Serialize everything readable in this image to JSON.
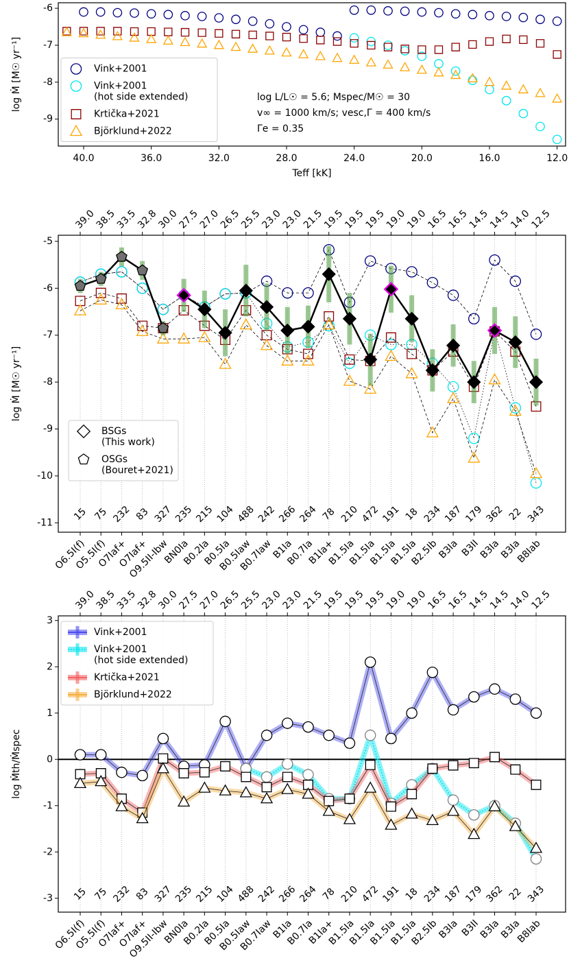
{
  "chart_data": [
    {
      "type": "scatter",
      "xlabel": "Teff [kK]",
      "ylabel": "log Ṁ [M☉ yr⁻¹]",
      "xlim": [
        41.5,
        11.5
      ],
      "xticks": [
        {
          "value": 40,
          "label": "40.0"
        },
        {
          "value": 36,
          "label": "36.0"
        },
        {
          "value": 32,
          "label": "32.0"
        },
        {
          "value": 28,
          "label": "28.0"
        },
        {
          "value": 24,
          "label": "24.0"
        },
        {
          "value": 20,
          "label": "20.0"
        },
        {
          "value": 16,
          "label": "16.0"
        },
        {
          "value": 12,
          "label": "12.0"
        }
      ],
      "ylim": [
        -9.73,
        -5.85
      ],
      "yticks": [
        -6,
        -7,
        -8,
        -9
      ],
      "legend": "center left",
      "annotations": [
        "log L/L☉ = 5.6; Mspec/M☉ = 30",
        "v∞ = 1000 km/s; vesc,Γ = 400 km/s",
        "Γe = 0.35"
      ],
      "series": [
        {
          "name": [
            "Vink+2001"
          ],
          "color": "#000080",
          "marker": "circle",
          "x": [
            40,
            39,
            38,
            37,
            36,
            35,
            34,
            33,
            32,
            31,
            30,
            29,
            28,
            27,
            26,
            25,
            24,
            23,
            22,
            21,
            20,
            19,
            18,
            17,
            16,
            15,
            14,
            13,
            12
          ],
          "values": [
            -6.1,
            -6.1,
            -6.12,
            -6.13,
            -6.15,
            -6.17,
            -6.2,
            -6.22,
            -6.26,
            -6.3,
            -6.35,
            -6.42,
            -6.5,
            -6.58,
            -6.65,
            -6.75,
            -6.05,
            -6.05,
            -6.07,
            -6.08,
            -6.1,
            -6.12,
            -6.15,
            -6.17,
            -6.2,
            -6.22,
            -6.25,
            -6.3,
            -6.35
          ]
        },
        {
          "name": [
            "Vink+2001",
            "(hot side extended)"
          ],
          "color": "#00e5ee",
          "marker": "circle",
          "x": [
            24,
            23,
            22,
            21,
            20,
            19,
            18,
            17,
            16,
            15,
            14,
            13,
            12
          ],
          "values": [
            -6.8,
            -6.9,
            -7.0,
            -7.15,
            -7.3,
            -7.5,
            -7.7,
            -7.95,
            -8.2,
            -8.5,
            -8.85,
            -9.2,
            -9.55
          ]
        },
        {
          "name": [
            "Krtička+2021"
          ],
          "color": "#8b0000",
          "marker": "square",
          "x": [
            41,
            40,
            39,
            38,
            37,
            36,
            35,
            34,
            33,
            32,
            31,
            30,
            29,
            28,
            27,
            26,
            25,
            24,
            23,
            22,
            21,
            20,
            19,
            18,
            17,
            16,
            15,
            14,
            13,
            12
          ],
          "values": [
            -6.62,
            -6.62,
            -6.62,
            -6.62,
            -6.63,
            -6.63,
            -6.64,
            -6.65,
            -6.66,
            -6.68,
            -6.7,
            -6.72,
            -6.75,
            -6.78,
            -6.82,
            -6.86,
            -6.9,
            -6.95,
            -7.0,
            -7.05,
            -7.1,
            -7.12,
            -7.12,
            -7.05,
            -6.98,
            -6.9,
            -6.83,
            -6.85,
            -6.95,
            -7.25
          ]
        },
        {
          "name": [
            "Björklund+2022"
          ],
          "color": "#ffa500",
          "marker": "triangle",
          "x": [
            41,
            40,
            39,
            38,
            37,
            36,
            35,
            34,
            33,
            32,
            31,
            30,
            29,
            28,
            27,
            26,
            25,
            24,
            23,
            22,
            21,
            20,
            19,
            18,
            17,
            16,
            15,
            14,
            13,
            12
          ],
          "values": [
            -6.65,
            -6.68,
            -6.72,
            -6.76,
            -6.8,
            -6.84,
            -6.88,
            -6.92,
            -6.96,
            -7.0,
            -7.05,
            -7.1,
            -7.15,
            -7.2,
            -7.25,
            -7.3,
            -7.35,
            -7.4,
            -7.47,
            -7.53,
            -7.6,
            -7.67,
            -7.74,
            -7.81,
            -7.9,
            -8.0,
            -8.1,
            -8.2,
            -8.3,
            -8.45
          ]
        }
      ]
    },
    {
      "type": "scatter",
      "ylabel": "log Ṁ [M☉ yr⁻¹]",
      "categories": [
        "O6.5I(f)",
        "O5.5I(f)",
        "O7Iaf+",
        "O7Iaf+",
        "O9.5II-Ibw",
        "BN0Ia",
        "B0.2Ia",
        "B0.5Ia",
        "B0.5Iaw",
        "B0.7Iaw",
        "B1Ia",
        "B0.7Ia",
        "B1Ia+",
        "B1.5Ia",
        "B1.5Ia",
        "B1.5Ia",
        "B1.5Ia",
        "B2.5Ib",
        "B3Ia",
        "B3II",
        "B3Ia",
        "B3Ia",
        "B8Iab"
      ],
      "top_labels": [
        "39.0",
        "38.5",
        "33.5",
        "32.8",
        "30.0",
        "27.5",
        "27.0",
        "26.5",
        "25.5",
        "23.0",
        "23.0",
        "21.5",
        "19.5",
        "19.5",
        "19.5",
        "19.0",
        "19.0",
        "16.5",
        "16.5",
        "14.5",
        "14.5",
        "14.0",
        "12.5"
      ],
      "numbers": [
        "15",
        "75",
        "232",
        "83",
        "327",
        "235",
        "215",
        "104",
        "488",
        "242",
        "266",
        "264",
        "78",
        "210",
        "472",
        "191",
        "18",
        "234",
        "187",
        "179",
        "362",
        "22",
        "343"
      ],
      "ylim": [
        -11.2,
        -4.87
      ],
      "yticks": [
        -5,
        -6,
        -7,
        -8,
        -9,
        -10,
        -11
      ],
      "legend": "lower left",
      "series": [
        {
          "color": "#000080",
          "marker": "circle",
          "linestyle": "dashed",
          "values": [
            -5.87,
            -5.7,
            -5.65,
            -6.0,
            -6.45,
            -6.15,
            -6.4,
            -6.12,
            -6.1,
            -5.85,
            -6.1,
            -6.1,
            -5.18,
            -6.3,
            -5.42,
            -5.58,
            -5.65,
            -5.88,
            -6.15,
            -6.65,
            -5.4,
            -5.85,
            -6.98
          ]
        },
        {
          "color": "#00e5ee",
          "marker": "circle",
          "linestyle": "dotted",
          "values": [
            -5.87,
            -5.7,
            -5.65,
            -6.0,
            -6.45,
            -6.15,
            -6.4,
            -6.12,
            -6.1,
            -6.75,
            -7.25,
            -7.15,
            -6.8,
            -7.6,
            -7.0,
            -7.2,
            -7.2,
            -7.6,
            -8.1,
            -9.2,
            -6.9,
            -8.55,
            -10.15
          ]
        },
        {
          "color": "#8b0000",
          "marker": "square",
          "linestyle": "dashed",
          "values": [
            -6.27,
            -6.1,
            -6.22,
            -6.8,
            -6.85,
            -6.47,
            -6.8,
            -7.1,
            -6.47,
            -7.0,
            -7.3,
            -7.4,
            -6.6,
            -7.52,
            -7.55,
            -7.05,
            -7.4,
            -7.75,
            -7.35,
            -8.1,
            -6.92,
            -7.35,
            -8.52
          ]
        },
        {
          "color": "#ffa500",
          "marker": "triangle",
          "linestyle": "dashed",
          "values": [
            -6.48,
            -6.25,
            -6.35,
            -6.92,
            -7.08,
            -7.08,
            -7.05,
            -7.62,
            -6.78,
            -7.22,
            -7.55,
            -7.55,
            -6.78,
            -7.98,
            -8.15,
            -7.45,
            -7.82,
            -9.08,
            -8.35,
            -9.62,
            -7.95,
            -8.62,
            -9.95
          ]
        },
        {
          "name": [
            "BSGs",
            "(This work)"
          ],
          "color": "#000000",
          "marker": "diamond",
          "marker_fill": "#000000",
          "linestyle": "solid",
          "error_color": "#4a9a3a",
          "values": [
            null,
            null,
            null,
            null,
            null,
            -6.15,
            -6.45,
            -6.95,
            -6.05,
            -6.4,
            -6.9,
            -6.82,
            -5.7,
            -6.65,
            -7.52,
            -6.02,
            -6.65,
            -7.75,
            -7.22,
            -8.0,
            -6.9,
            -7.15,
            -8.0
          ],
          "errors": [
            null,
            null,
            null,
            null,
            null,
            0.35,
            0.4,
            0.5,
            0.55,
            0.5,
            0.5,
            0.45,
            0.6,
            0.55,
            0.55,
            0.5,
            0.5,
            0.45,
            0.45,
            0.45,
            0.5,
            0.55,
            0.5
          ],
          "marker_edges": [
            null,
            null,
            null,
            null,
            null,
            "#e600e6",
            "#000000",
            "#000000",
            "#000000",
            "#000000",
            "#000000",
            "#000000",
            "#000000",
            "#000000",
            "#000000",
            "#e600e6",
            "#000000",
            "#000000",
            "#000000",
            "#000000",
            "#e600e6",
            "#000000",
            "#000000"
          ]
        },
        {
          "name": [
            "OSGs",
            "(Bouret+2021)"
          ],
          "color": "#000000",
          "marker": "pentagon",
          "marker_fill": "#707070",
          "linestyle": "solid",
          "error_color": "#4a9a3a",
          "values": [
            -5.95,
            -5.8,
            -5.33,
            -5.62,
            -6.85,
            null,
            null,
            null,
            null,
            null,
            null,
            null,
            null,
            null,
            null,
            null,
            null,
            null,
            null,
            null,
            null,
            null,
            null
          ],
          "errors": [
            0.15,
            0.15,
            0.2,
            0.2,
            0.15,
            null,
            null,
            null,
            null,
            null,
            null,
            null,
            null,
            null,
            null,
            null,
            null,
            null,
            null,
            null,
            null,
            null,
            null
          ]
        }
      ]
    },
    {
      "type": "line",
      "ylabel": "log Ṁth/Ṁspec",
      "categories": [
        "O6.5I(f)",
        "O5.5I(f)",
        "O7Iaf+",
        "O7Iaf+",
        "O9.5II-Ibw",
        "BN0Ia",
        "B0.2Ia",
        "B0.5Ia",
        "B0.5Iaw",
        "B0.7Iaw",
        "B1Ia",
        "B0.7Ia",
        "B1Ia+",
        "B1.5Ia",
        "B1.5Ia",
        "B1.5Ia",
        "B1.5Ia",
        "B2.5Ib",
        "B3Ia",
        "B3II",
        "B3Ia",
        "B3Ia",
        "B8Iab"
      ],
      "top_labels": [
        "39.0",
        "38.5",
        "33.5",
        "32.8",
        "30.0",
        "27.5",
        "27.0",
        "26.5",
        "25.5",
        "23.0",
        "23.0",
        "21.5",
        "19.5",
        "19.5",
        "19.5",
        "19.0",
        "19.0",
        "16.5",
        "16.5",
        "14.5",
        "14.5",
        "14.0",
        "12.5"
      ],
      "numbers": [
        "15",
        "75",
        "232",
        "83",
        "327",
        "235",
        "215",
        "104",
        "488",
        "242",
        "266",
        "264",
        "78",
        "210",
        "472",
        "191",
        "18",
        "234",
        "187",
        "179",
        "362",
        "22",
        "343"
      ],
      "ylim": [
        -3.3,
        3.1
      ],
      "yticks": [
        3,
        2,
        1,
        0,
        -1,
        -2,
        -3
      ],
      "legend": "upper left",
      "series": [
        {
          "name": [
            "Vink+2001"
          ],
          "color": "#4b4bef",
          "marker": "circle",
          "marker_fill": "#ffffff",
          "marker_edge": "#000000",
          "linestyle": "solid",
          "values": [
            0.1,
            0.1,
            -0.28,
            -0.35,
            0.45,
            -0.15,
            -0.12,
            0.82,
            -0.2,
            0.52,
            0.78,
            0.7,
            0.52,
            0.35,
            2.1,
            0.45,
            1.0,
            1.88,
            1.07,
            1.35,
            1.52,
            1.3,
            1.0
          ]
        },
        {
          "name": [
            "Vink+2001",
            "(hot side extended)"
          ],
          "color": "#00e5ee",
          "marker": "circle",
          "marker_fill": "#ffffff",
          "marker_edge": "#808080",
          "linestyle": "dotted",
          "values": [
            null,
            null,
            null,
            null,
            null,
            null,
            null,
            null,
            -0.2,
            -0.38,
            -0.1,
            -0.33,
            -0.85,
            -0.85,
            0.52,
            -0.95,
            -0.55,
            -0.2,
            -0.88,
            -1.2,
            -1.0,
            -1.38,
            -2.15
          ]
        },
        {
          "name": [
            "Krtička+2021"
          ],
          "color": "#f46060",
          "marker": "square",
          "marker_fill": "#ffffff",
          "marker_edge": "#000000",
          "linestyle": "solid",
          "values": [
            -0.32,
            -0.3,
            -0.85,
            -1.15,
            0.02,
            -0.3,
            -0.28,
            -0.15,
            -0.38,
            -0.6,
            -0.38,
            -0.55,
            -0.9,
            -0.85,
            -0.12,
            -1.02,
            -0.75,
            -0.2,
            -0.13,
            -0.08,
            0.05,
            -0.22,
            -0.55
          ]
        },
        {
          "name": [
            "Björklund+2022"
          ],
          "color": "#f7b040",
          "marker": "triangle",
          "marker_fill": "#ffffff",
          "marker_edge": "#000000",
          "linestyle": "solid",
          "values": [
            -0.52,
            -0.48,
            -1.02,
            -1.28,
            -0.2,
            -0.92,
            -0.62,
            -0.68,
            -0.72,
            -0.85,
            -0.65,
            -0.75,
            -1.12,
            -1.3,
            -0.62,
            -1.42,
            -1.18,
            -1.32,
            -1.12,
            -1.62,
            -1.02,
            -1.45,
            -1.92
          ]
        }
      ]
    }
  ]
}
